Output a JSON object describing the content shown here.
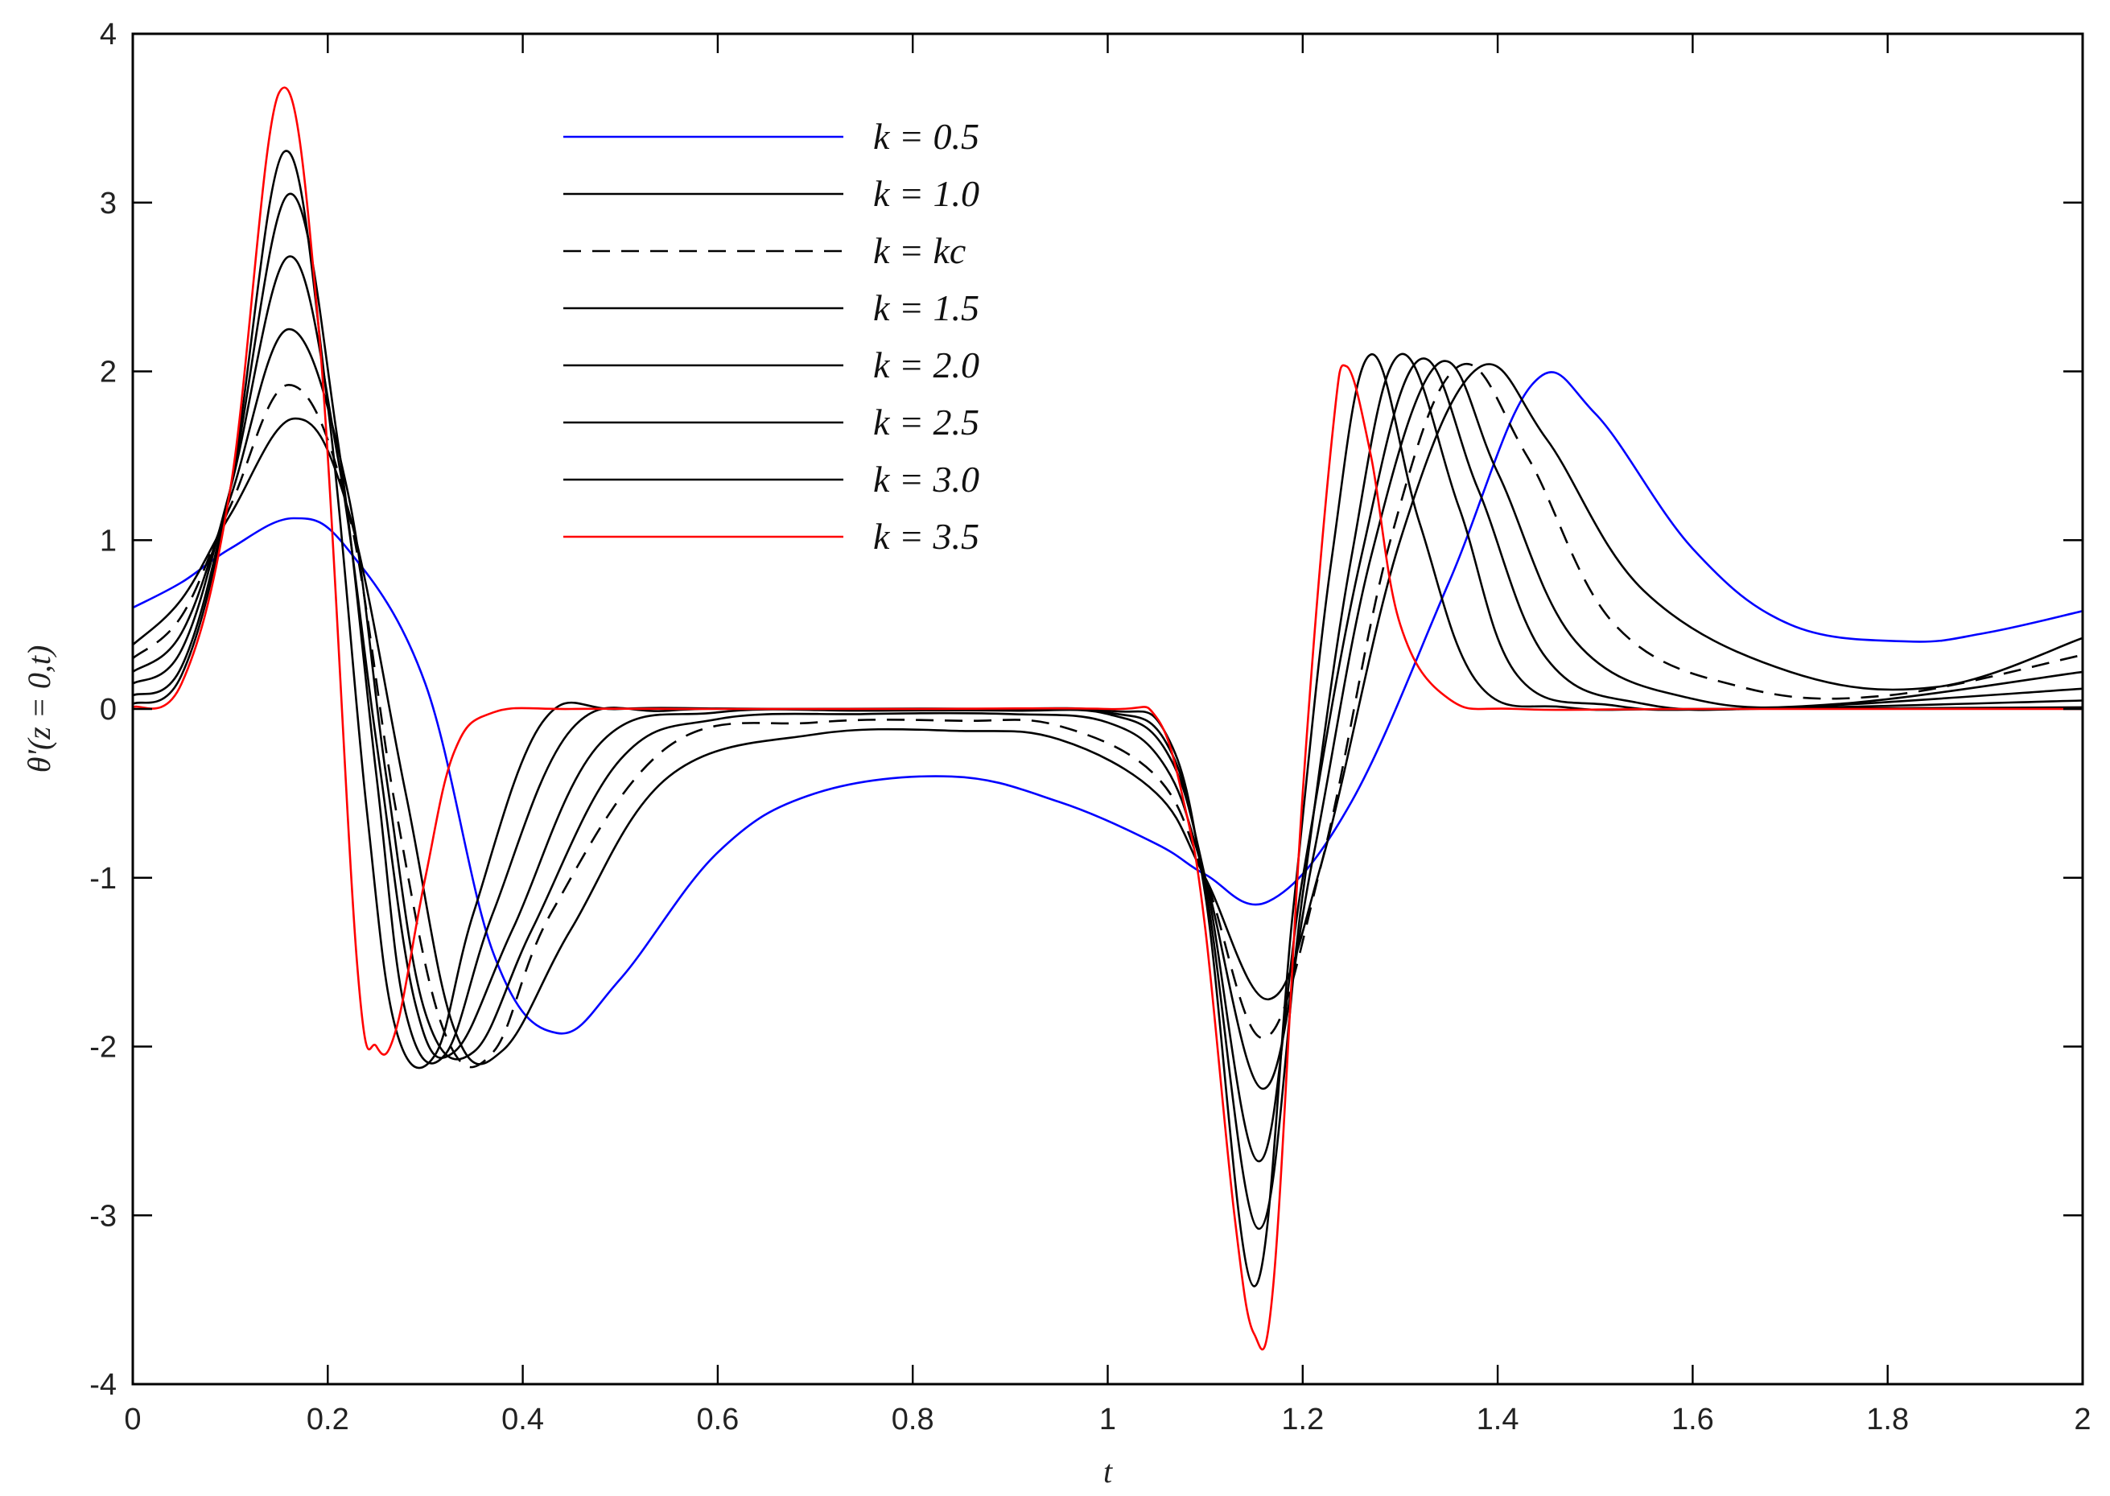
{
  "chart_data": {
    "type": "line",
    "title": "",
    "xlabel": "t",
    "ylabel": "θ'(z = 0,t)",
    "xlim": [
      0,
      2
    ],
    "ylim": [
      -4,
      4
    ],
    "xticks": [
      0,
      0.2,
      0.4,
      0.6,
      0.8,
      1,
      1.2,
      1.4,
      1.6,
      1.8,
      2
    ],
    "xtick_labels": [
      "0",
      "0.2",
      "0.4",
      "0.6",
      "0.8",
      "1",
      "1.2",
      "1.4",
      "1.6",
      "1.8",
      "2"
    ],
    "yticks": [
      -4,
      -3,
      -2,
      -1,
      0,
      1,
      2,
      3,
      4
    ],
    "ytick_labels": [
      "-4",
      "-3",
      "-2",
      "-1",
      "0",
      "1",
      "2",
      "3",
      "4"
    ],
    "grid": false,
    "legend_position": "top-center",
    "series": [
      {
        "name": "k = 0.5",
        "color": "#0000ff",
        "style": "solid",
        "x": [
          0,
          0.05,
          0.1,
          0.165,
          0.22,
          0.3,
          0.37,
          0.435,
          0.5,
          0.6,
          0.7,
          0.84,
          0.95,
          1.05,
          1.1,
          1.165,
          1.25,
          1.35,
          1.435,
          1.5,
          1.6,
          1.7,
          1.82,
          1.9,
          2.0
        ],
        "y": [
          0.6,
          0.75,
          0.95,
          1.13,
          0.95,
          0.15,
          -1.45,
          -1.92,
          -1.6,
          -0.85,
          -0.5,
          -0.4,
          -0.55,
          -0.8,
          -0.98,
          -1.14,
          -0.55,
          0.75,
          1.92,
          1.75,
          0.95,
          0.5,
          0.4,
          0.45,
          0.58
        ]
      },
      {
        "name": "k = 1.0",
        "color": "#000000",
        "style": "solid",
        "x": [
          0,
          0.05,
          0.1,
          0.165,
          0.22,
          0.28,
          0.33,
          0.38,
          0.45,
          0.55,
          0.7,
          0.85,
          0.95,
          1.05,
          1.1,
          1.165,
          1.22,
          1.3,
          1.38,
          1.45,
          1.55,
          1.7,
          1.85,
          2.0
        ],
        "y": [
          0.38,
          0.65,
          1.15,
          1.72,
          1.2,
          -0.5,
          -1.9,
          -2.02,
          -1.3,
          -0.4,
          -0.15,
          -0.13,
          -0.18,
          -0.5,
          -1.0,
          -1.72,
          -0.9,
          1.0,
          2.02,
          1.6,
          0.7,
          0.22,
          0.13,
          0.42
        ]
      },
      {
        "name": "k = kc",
        "color": "#000000",
        "style": "dashed",
        "x": [
          0,
          0.05,
          0.1,
          0.16,
          0.22,
          0.27,
          0.32,
          0.37,
          0.43,
          0.55,
          0.7,
          0.85,
          0.95,
          1.05,
          1.1,
          1.16,
          1.22,
          1.29,
          1.36,
          1.43,
          1.52,
          1.65,
          1.8,
          2.0
        ],
        "y": [
          0.3,
          0.55,
          1.2,
          1.92,
          1.2,
          -0.6,
          -1.92,
          -2.03,
          -1.2,
          -0.22,
          -0.08,
          -0.07,
          -0.1,
          -0.4,
          -1.0,
          -1.95,
          -0.9,
          1.0,
          2.03,
          1.5,
          0.5,
          0.13,
          0.08,
          0.32
        ]
      },
      {
        "name": "k = 1.5",
        "color": "#000000",
        "style": "solid",
        "x": [
          0,
          0.05,
          0.1,
          0.16,
          0.22,
          0.26,
          0.3,
          0.35,
          0.41,
          0.5,
          0.6,
          0.75,
          0.9,
          1.0,
          1.06,
          1.1,
          1.16,
          1.21,
          1.27,
          1.34,
          1.4,
          1.48,
          1.6,
          1.75,
          2.0
        ],
        "y": [
          0.22,
          0.45,
          1.25,
          2.25,
          1.3,
          -0.4,
          -1.8,
          -2.03,
          -1.3,
          -0.3,
          -0.06,
          -0.03,
          -0.03,
          -0.08,
          -0.35,
          -1.0,
          -2.25,
          -0.9,
          0.9,
          2.05,
          1.4,
          0.4,
          0.06,
          0.03,
          0.22
        ]
      },
      {
        "name": "k = 2.0",
        "color": "#000000",
        "style": "solid",
        "x": [
          0,
          0.05,
          0.1,
          0.16,
          0.21,
          0.25,
          0.29,
          0.33,
          0.39,
          0.48,
          0.6,
          0.75,
          0.9,
          1.0,
          1.06,
          1.1,
          1.155,
          1.2,
          1.26,
          1.32,
          1.38,
          1.45,
          1.55,
          1.7,
          2.0
        ],
        "y": [
          0.15,
          0.35,
          1.3,
          2.68,
          1.5,
          -0.2,
          -1.75,
          -2.03,
          -1.3,
          -0.2,
          -0.02,
          -0.01,
          -0.01,
          -0.03,
          -0.25,
          -1.0,
          -2.68,
          -1.0,
          0.9,
          2.07,
          1.3,
          0.3,
          0.03,
          0.01,
          0.12
        ]
      },
      {
        "name": "k = 2.5",
        "color": "#000000",
        "style": "solid",
        "x": [
          0,
          0.05,
          0.1,
          0.16,
          0.21,
          0.25,
          0.28,
          0.32,
          0.37,
          0.45,
          0.55,
          0.7,
          0.9,
          1.0,
          1.06,
          1.1,
          1.155,
          1.2,
          1.25,
          1.3,
          1.36,
          1.42,
          1.52,
          1.65,
          2.0
        ],
        "y": [
          0.08,
          0.25,
          1.3,
          3.05,
          1.6,
          -0.4,
          -1.8,
          -2.05,
          -1.2,
          -0.12,
          -0.01,
          0,
          0,
          -0.02,
          -0.2,
          -1.05,
          -3.08,
          -1.1,
          0.9,
          2.1,
          1.2,
          0.2,
          0.02,
          0,
          0.05
        ]
      },
      {
        "name": "k = 3.0",
        "color": "#000000",
        "style": "solid",
        "x": [
          0,
          0.05,
          0.1,
          0.155,
          0.2,
          0.24,
          0.27,
          0.31,
          0.35,
          0.42,
          0.5,
          0.65,
          0.85,
          1.0,
          1.06,
          1.1,
          1.15,
          1.19,
          1.23,
          1.27,
          1.32,
          1.38,
          1.47,
          1.6,
          2.0
        ],
        "y": [
          0.03,
          0.2,
          1.3,
          3.3,
          1.8,
          -0.6,
          -1.9,
          -2.05,
          -1.2,
          -0.08,
          0,
          0,
          0,
          -0.01,
          -0.15,
          -1.1,
          -3.42,
          -1.2,
          0.9,
          2.1,
          1.1,
          0.15,
          0.01,
          0,
          0.01
        ]
      },
      {
        "name": "k = 3.5",
        "color": "#ff0000",
        "style": "solid",
        "x": [
          0,
          0.05,
          0.1,
          0.15,
          0.19,
          0.23,
          0.25,
          0.27,
          0.3,
          0.33,
          0.37,
          0.45,
          0.6,
          0.8,
          1.0,
          1.05,
          1.08,
          1.1,
          1.13,
          1.15,
          1.17,
          1.2,
          1.23,
          1.245,
          1.27,
          1.3,
          1.35,
          1.42,
          1.6,
          2.0
        ],
        "y": [
          0.01,
          0.15,
          1.3,
          3.65,
          2.3,
          -1.5,
          -2.0,
          -1.9,
          -1.0,
          -0.25,
          -0.02,
          0,
          0,
          0,
          0,
          -0.05,
          -0.6,
          -1.3,
          -3.0,
          -3.7,
          -3.4,
          -0.5,
          1.6,
          2.03,
          1.5,
          0.5,
          0.06,
          0,
          0,
          0
        ]
      }
    ]
  }
}
